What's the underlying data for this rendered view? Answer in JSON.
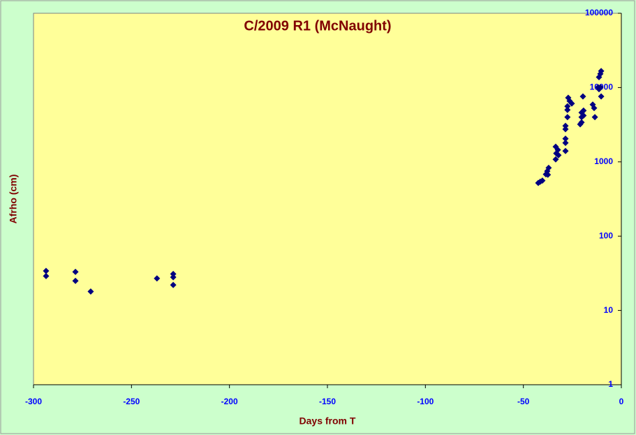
{
  "chart_data": {
    "type": "scatter",
    "title": "C/2009 R1 (McNaught)",
    "x_label": "Days from T",
    "y_label": "Afrho (cm)",
    "x": [
      -293.6,
      -293.6,
      -278.6,
      -278.6,
      -270.8,
      -237,
      -228.7,
      -228.7,
      -228.7,
      -42.4,
      -41.4,
      -40.3,
      -38.5,
      -37.8,
      -37.1,
      -37.5,
      -33.5,
      -33.2,
      -33.5,
      -32.4,
      -32.1,
      -28.5,
      -28.5,
      -28.5,
      -28.5,
      -28.5,
      -27.5,
      -27.5,
      -27.5,
      -27.1,
      -26.4,
      -25.3,
      -21.0,
      -20.3,
      -20.3,
      -20.3,
      -19.3,
      -19.3,
      -19.6,
      -14.6,
      -13.9,
      -13.5,
      -11.8,
      -11.4,
      -10.7,
      -10.3,
      -10.7,
      -10.3,
      -11.4
    ],
    "values": [
      34,
      29,
      33,
      25,
      18,
      27,
      31,
      28,
      22,
      520,
      540,
      560,
      680,
      750,
      830,
      670,
      1080,
      1300,
      1600,
      1450,
      1230,
      1400,
      1800,
      2050,
      2750,
      3050,
      4000,
      5000,
      5600,
      7300,
      6600,
      6100,
      3200,
      3400,
      4000,
      4600,
      4900,
      4200,
      7600,
      5900,
      5300,
      4000,
      10100,
      9500,
      10100,
      7600,
      15300,
      16700,
      13800
    ],
    "color": "#000080",
    "xlim": [
      -300,
      0
    ],
    "xticks": [
      -300,
      -250,
      -200,
      -150,
      -100,
      -50,
      0
    ],
    "ylim": [
      1,
      100000
    ],
    "yticks": [
      1,
      10,
      100,
      1000,
      10000,
      100000
    ],
    "log_y": true,
    "y_axis_side": "right",
    "grid": false
  }
}
